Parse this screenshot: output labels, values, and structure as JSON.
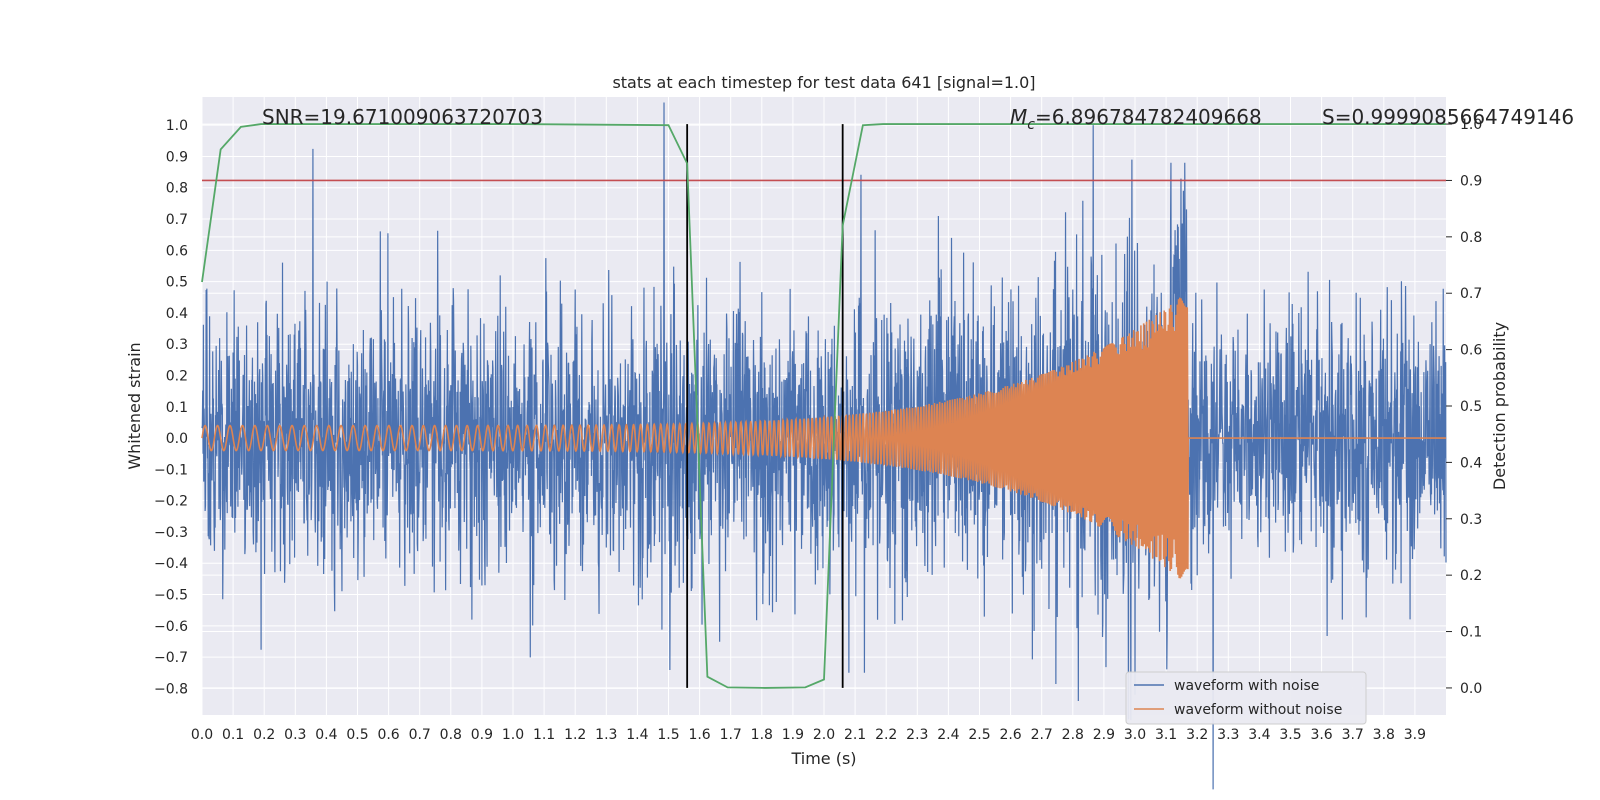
{
  "chart_data": {
    "type": "line",
    "title": "stats at each timestep for test data 641 [signal=1.0]",
    "xlabel": "Time (s)",
    "ylabel_left": "Whitened strain",
    "ylabel_right": "Detection probability",
    "xlim": [
      0.0,
      4.0
    ],
    "ylim_left": [
      -0.885,
      1.09
    ],
    "ylim_right": [
      -0.048,
      1.048
    ],
    "x_ticks": [
      "0.0",
      "0.1",
      "0.2",
      "0.3",
      "0.4",
      "0.5",
      "0.6",
      "0.7",
      "0.8",
      "0.9",
      "1.0",
      "1.1",
      "1.2",
      "1.3",
      "1.4",
      "1.5",
      "1.6",
      "1.7",
      "1.8",
      "1.9",
      "2.0",
      "2.1",
      "2.2",
      "2.3",
      "2.4",
      "2.5",
      "2.6",
      "2.7",
      "2.8",
      "2.9",
      "3.0",
      "3.1",
      "3.2",
      "3.3",
      "3.4",
      "3.5",
      "3.6",
      "3.7",
      "3.8",
      "3.9"
    ],
    "y_ticks_left": [
      "−0.8",
      "−0.7",
      "−0.6",
      "−0.5",
      "−0.4",
      "−0.3",
      "−0.2",
      "−0.1",
      "0.0",
      "0.1",
      "0.2",
      "0.3",
      "0.4",
      "0.5",
      "0.6",
      "0.7",
      "0.8",
      "0.9",
      "1.0"
    ],
    "y_ticks_right": [
      "0.0",
      "0.1",
      "0.2",
      "0.3",
      "0.4",
      "0.5",
      "0.6",
      "0.7",
      "0.8",
      "0.9",
      "1.0"
    ],
    "grid": true,
    "legend_position": "lower-right",
    "annotations": {
      "snr": "SNR=19.671009063720703",
      "mc_symbol": "M",
      "mc_subscript": "c",
      "mc_value": "=6.896784782409668",
      "s": "S=0.9999085664749146"
    },
    "threshold_line": {
      "axis": "right",
      "y": 0.9,
      "color": "#c44e52"
    },
    "vertical_lines": [
      1.56,
      2.06
    ],
    "series": [
      {
        "name": "waveform with noise",
        "axis": "left",
        "color": "#4c72b0",
        "noise_amplitude": 0.22,
        "noise_peak_values": [
          1.0,
          0.89,
          0.88,
          0.88,
          -0.82,
          -0.75
        ]
      },
      {
        "name": "waveform without noise",
        "axis": "left",
        "color": "#dd8452",
        "start_amplitude": 0.04,
        "merger_time": 3.17,
        "merger_amplitude": 0.47,
        "start_frequency_hz": 25,
        "end_frequency_hz": 250
      },
      {
        "axis": "right",
        "color": "#55a868",
        "x": [
          0.0,
          0.06,
          0.125,
          0.19,
          0.25,
          1.0,
          1.5,
          1.56,
          1.625,
          1.69,
          1.81,
          1.94,
          2.0,
          2.06,
          2.125,
          2.19,
          4.0
        ],
        "y": [
          0.72,
          0.955,
          0.995,
          1.0,
          1.0,
          1.0,
          0.998,
          0.93,
          0.02,
          0.001,
          0.0,
          0.001,
          0.015,
          0.82,
          0.998,
          1.0,
          1.0
        ]
      }
    ]
  }
}
